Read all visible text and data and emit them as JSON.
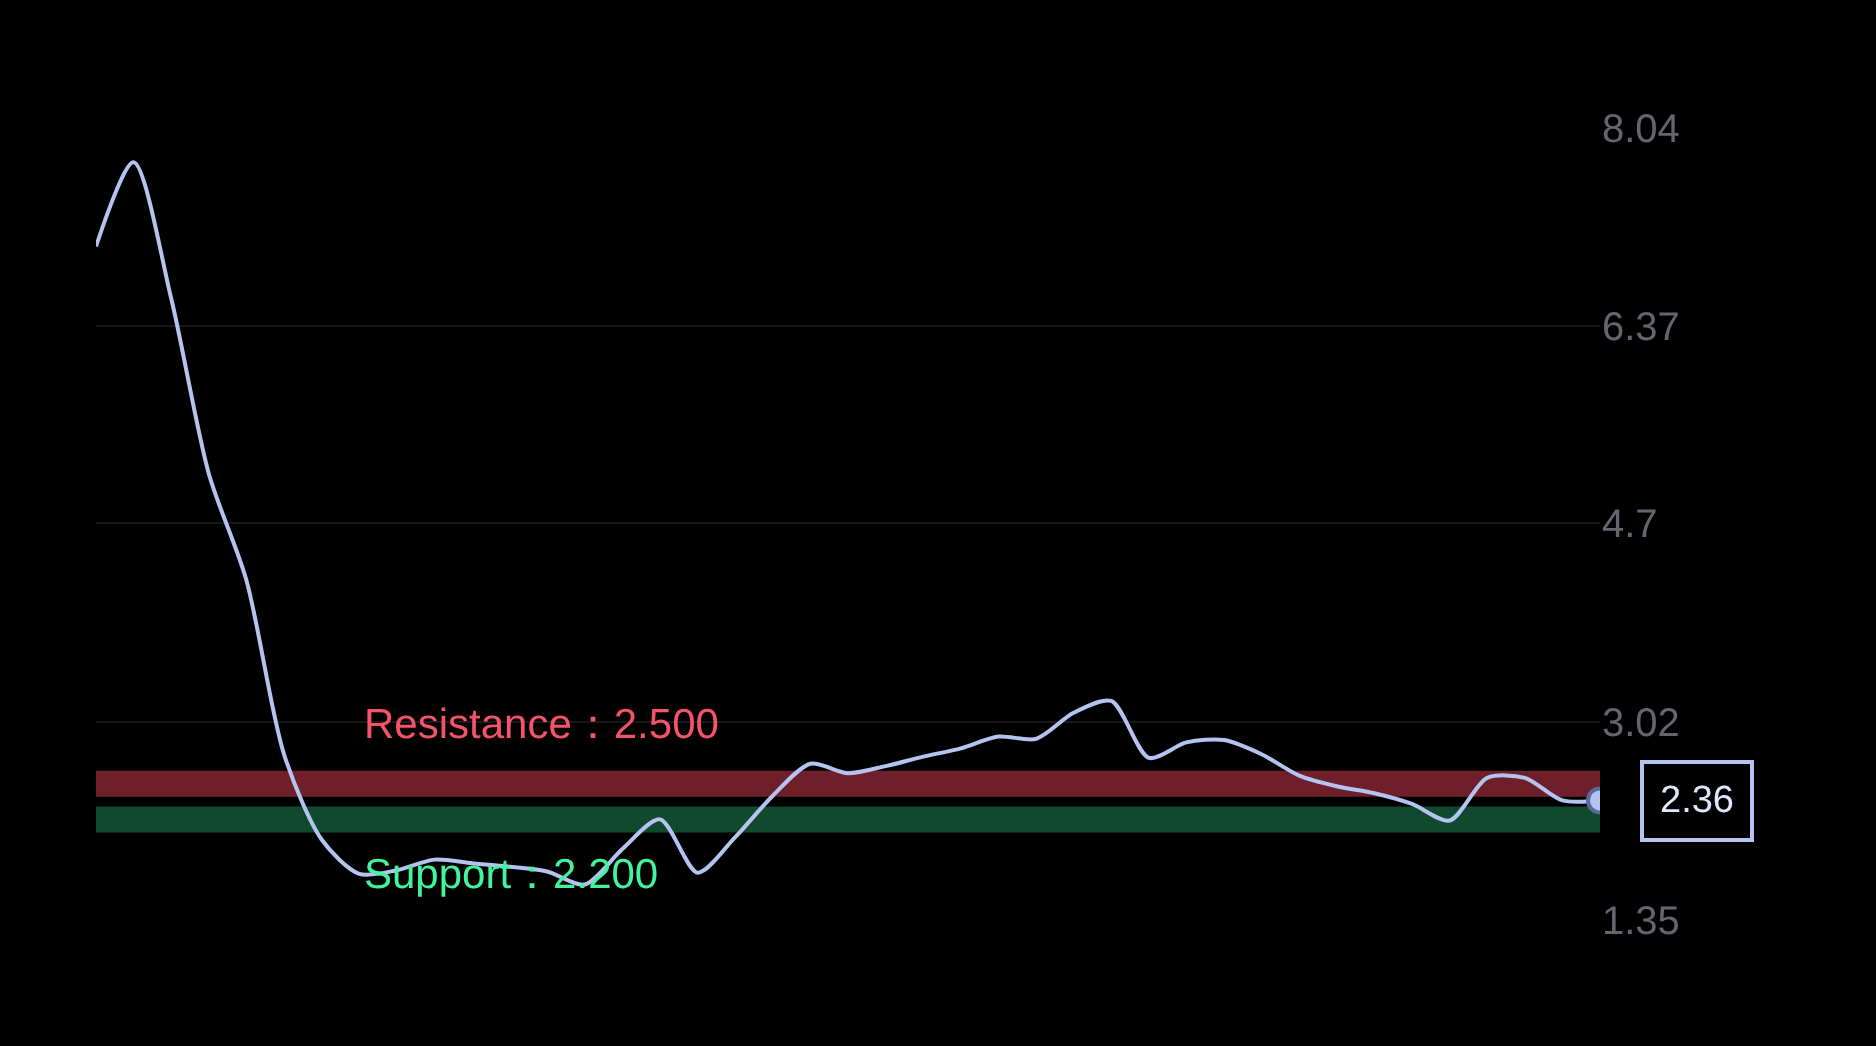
{
  "chart_data": {
    "type": "line",
    "categories": [
      null,
      null,
      null,
      null,
      null,
      null,
      null,
      null,
      null,
      null,
      null,
      null,
      null,
      null,
      null,
      null,
      null,
      null,
      null,
      null,
      null,
      null,
      null,
      null,
      null,
      null,
      null,
      null,
      null,
      null,
      null,
      null,
      null,
      null,
      null,
      null,
      null,
      null,
      null,
      null,
      null
    ],
    "series": [
      {
        "color": "#b4c3f0",
        "values": [
          7.04,
          7.75,
          6.6,
          5.12,
          4.22,
          2.75,
          2.03,
          1.74,
          1.77,
          1.86,
          1.83,
          1.8,
          1.76,
          1.65,
          1.95,
          2.2,
          1.75,
          2.05,
          2.4,
          2.67,
          2.59,
          2.65,
          2.73,
          2.8,
          2.9,
          2.88,
          3.1,
          3.2,
          2.72,
          2.85,
          2.87,
          2.75,
          2.57,
          2.48,
          2.42,
          2.33,
          2.19,
          2.55,
          2.55,
          2.36,
          2.36
        ]
      }
    ],
    "ylim": [
      1.35,
      8.04
    ],
    "yticks": [
      1.35,
      3.02,
      4.7,
      6.37,
      8.04
    ],
    "grid": "y",
    "tick_labels": "y",
    "marker": "none",
    "line_style": "solid",
    "ref_lines": [
      {
        "axis": "y",
        "value": 2.5,
        "label": "Resistance：2.500",
        "color": "#6e1f2a"
      },
      {
        "axis": "y",
        "value": 2.2,
        "label": "Support：2.200",
        "color": "#0f4a2e"
      }
    ],
    "annotations": [
      "2.36"
    ]
  }
}
